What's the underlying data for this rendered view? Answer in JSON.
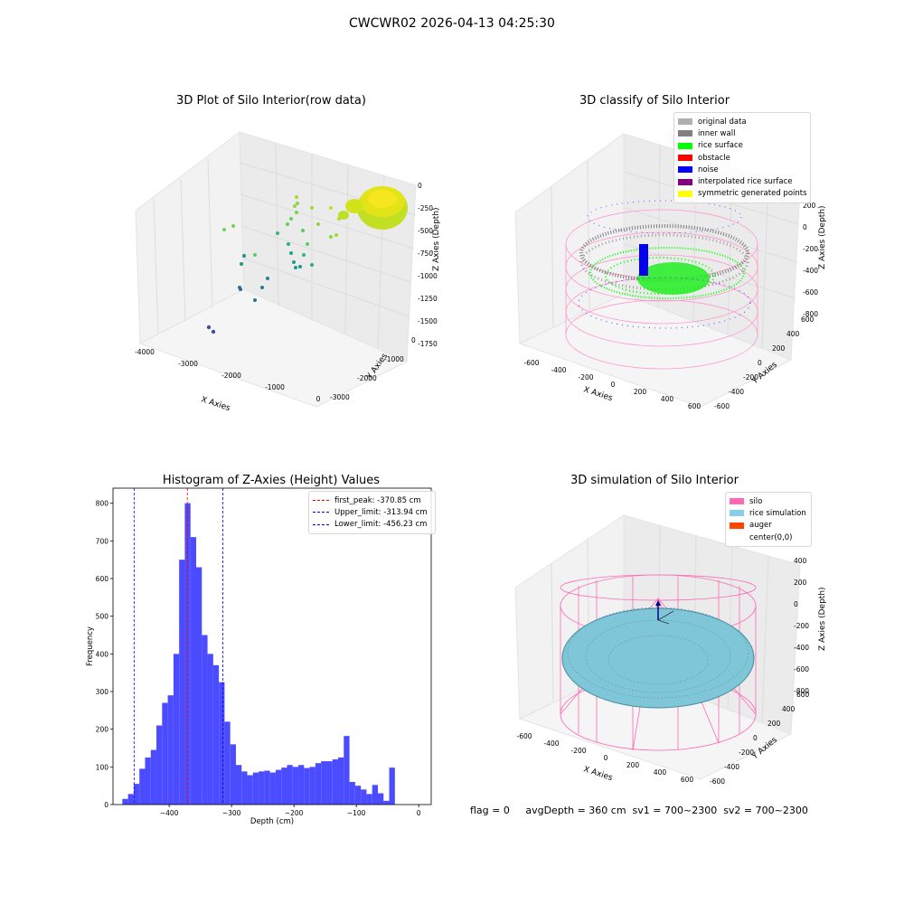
{
  "suptitle": "CWCWR02 2026-04-13 04:25:30",
  "panels": {
    "raw": {
      "title": "3D Plot of Silo Interior(row data)",
      "xlabel": "X Axies",
      "ylabel": "Y Axies",
      "zlabel": "Z Axies (Depth)",
      "x_ticks": [
        "-4000",
        "-3000",
        "-2000",
        "-1000",
        "0"
      ],
      "y_ticks": [
        "-3000",
        "-2000",
        "-1000",
        "0"
      ],
      "z_ticks": [
        "0",
        "-250",
        "-500",
        "-750",
        "-1000",
        "-1250",
        "-1500",
        "-1750"
      ]
    },
    "classify": {
      "title": "3D classify of Silo Interior",
      "xlabel": "X Axies",
      "ylabel": "Y Axies",
      "zlabel": "Z Axies (Depth)",
      "x_ticks": [
        "-600",
        "-400",
        "-200",
        "0",
        "200",
        "400",
        "600"
      ],
      "y_ticks": [
        "-600",
        "-400",
        "-200",
        "0",
        "200",
        "400",
        "600"
      ],
      "z_ticks": [
        "200",
        "0",
        "-200",
        "-400",
        "-600",
        "-800"
      ],
      "legend": [
        {
          "label": "original data",
          "color": "#b0b0b0"
        },
        {
          "label": "inner wall",
          "color": "#808080"
        },
        {
          "label": "rice surface",
          "color": "#00ff00"
        },
        {
          "label": "obstacle",
          "color": "#ff0000"
        },
        {
          "label": "noise",
          "color": "#0000ff"
        },
        {
          "label": "interpolated rice surface",
          "color": "#800080"
        },
        {
          "label": "symmetric generated points",
          "color": "#ffff00"
        }
      ]
    },
    "simulation": {
      "title": "3D simulation of Silo Interior",
      "xlabel": "X Axies",
      "ylabel": "Y Axies",
      "zlabel": "Z Axies (Depth)",
      "x_ticks": [
        "-600",
        "-400",
        "-200",
        "0",
        "200",
        "400",
        "600"
      ],
      "y_ticks": [
        "-600",
        "-400",
        "-200",
        "0",
        "200",
        "400",
        "600"
      ],
      "z_ticks": [
        "400",
        "200",
        "0",
        "-200",
        "-400",
        "-600",
        "-800"
      ],
      "legend": [
        {
          "label": "silo",
          "color": "#ff69b4"
        },
        {
          "label": "rice simulation",
          "color": "#87ceeb"
        },
        {
          "label": "auger",
          "color": "#ff4500"
        },
        {
          "label": "center(0,0)",
          "color": ""
        }
      ]
    }
  },
  "chart_data": {
    "type": "bar",
    "title": "Histogram of Z-Axies (Height) Values",
    "xlabel": "Depth (cm)",
    "ylabel": "Frequency",
    "xlim": [
      -490,
      20
    ],
    "ylim": [
      0,
      840
    ],
    "x_ticks": [
      -400,
      -300,
      -200,
      -100,
      0
    ],
    "y_ticks": [
      0,
      100,
      200,
      300,
      400,
      500,
      600,
      700,
      800
    ],
    "bin_width": 9.1,
    "bin_start": -475,
    "values": [
      15,
      28,
      55,
      95,
      125,
      145,
      210,
      270,
      290,
      400,
      650,
      800,
      710,
      630,
      450,
      400,
      370,
      325,
      220,
      160,
      105,
      88,
      78,
      85,
      88,
      90,
      85,
      92,
      98,
      105,
      100,
      105,
      97,
      100,
      110,
      115,
      115,
      120,
      125,
      182,
      60,
      50,
      40,
      28,
      52,
      30,
      10,
      98
    ],
    "bar_color": "#4b4bff",
    "lines": [
      {
        "label": "first_peak: -370.85 cm",
        "x": -370.85,
        "color": "#ff0000"
      },
      {
        "label": "Upper_limit: -313.94 cm",
        "x": -313.94,
        "color": "#0000ff"
      },
      {
        "label": "Lower_limit: -456.23 cm",
        "x": -456.23,
        "color": "#0000ff"
      }
    ],
    "legend_position": "top-right"
  },
  "status": {
    "text": "flag = 0     avgDepth = 360 cm  sv1 = 700~2300  sv2 = 700~2300"
  }
}
